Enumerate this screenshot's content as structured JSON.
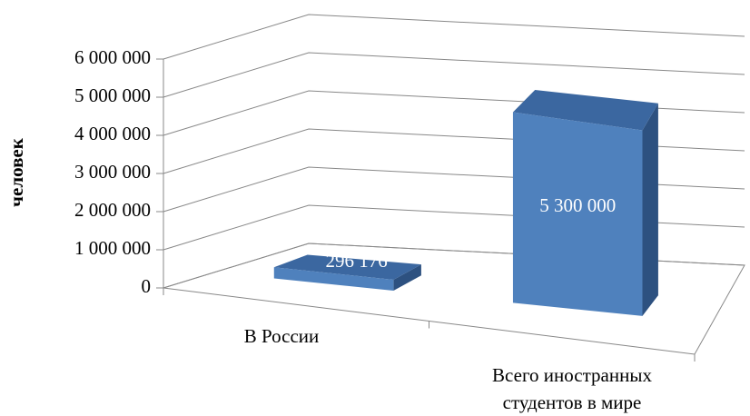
{
  "chart_data": {
    "type": "bar3d",
    "y_label": "человек",
    "categories": [
      "В России",
      "Всего иностранных студентов в мире"
    ],
    "values": [
      296176,
      5300000
    ],
    "value_labels": [
      "296 176",
      "5 300 000"
    ],
    "color": "#4f81bd",
    "ylim": [
      0,
      6000000
    ],
    "yticks": [
      0,
      {
        "value": 1000000,
        "label": "1 000 000"
      },
      {
        "value": 2000000,
        "label": "2 000 000"
      },
      {
        "value": 3000000,
        "label": "3 000 000"
      },
      {
        "value": 4000000,
        "label": "4 000 000"
      },
      {
        "value": 5000000,
        "label": "5 000 000"
      },
      {
        "value": 6000000,
        "label": "6 000 000"
      }
    ],
    "grid": true
  }
}
